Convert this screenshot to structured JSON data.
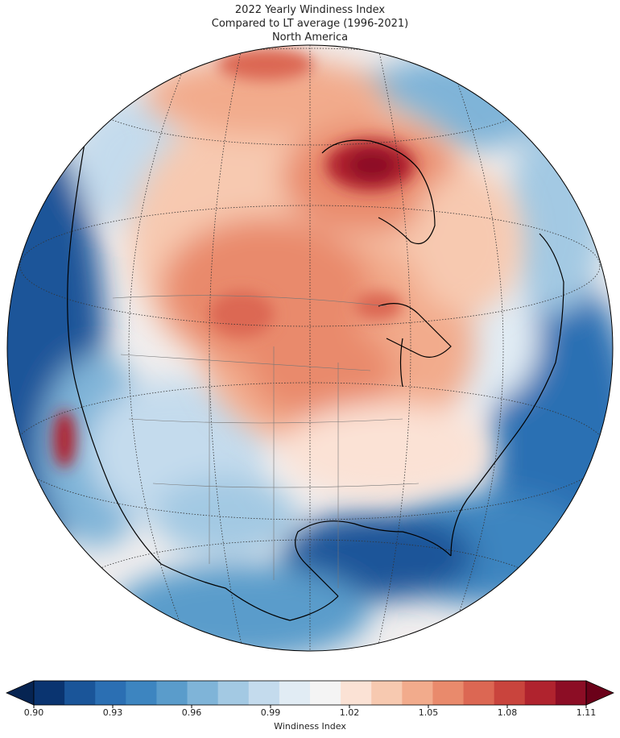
{
  "title": {
    "line1": "2022 Yearly Windiness Index",
    "line2": "Compared to LT average (1996-2021)",
    "line3": "North America"
  },
  "colorbar": {
    "label": "Windiness Index",
    "min": 0.9,
    "max": 1.11,
    "step": 0.01,
    "tick_labels": [
      "0.90",
      "0.93",
      "0.96",
      "0.99",
      "1.02",
      "1.05",
      "1.08",
      "1.11"
    ],
    "colors": [
      "#0a3470",
      "#1a5599",
      "#2b6fb3",
      "#3d85c0",
      "#5a9ccb",
      "#7fb4d8",
      "#a3c9e3",
      "#c4dbed",
      "#e1ecf4",
      "#f4f4f4",
      "#fbe2d5",
      "#f7c9b0",
      "#f2ab8c",
      "#e98a6c",
      "#dc6753",
      "#c9443d",
      "#b0232e",
      "#8c0d25"
    ],
    "extend_low": "#062452",
    "extend_high": "#6b0119"
  },
  "map": {
    "projection": "orthographic",
    "region": "North America",
    "colors": {
      "ocean_low": "#1a5599",
      "land_high": "#e98a6c",
      "hotspot": "#8c0d25"
    }
  }
}
